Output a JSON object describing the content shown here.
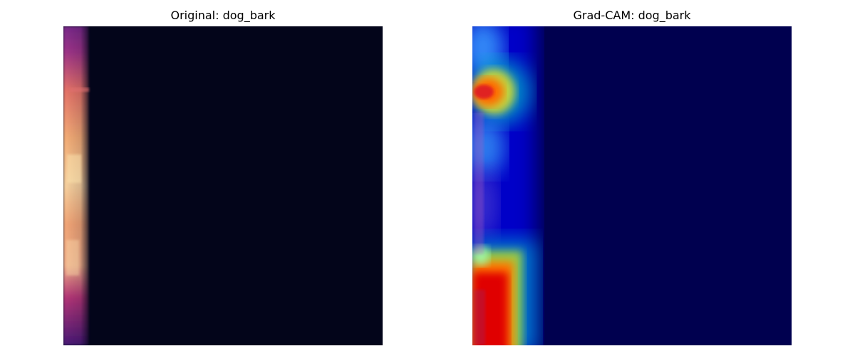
{
  "panels": [
    {
      "title": "Original: dog_bark"
    },
    {
      "title": "Grad-CAM: dog_bark"
    }
  ],
  "colors": {
    "spectrogram_background": "#03051a",
    "gradcam_background": "#00004f",
    "spectrogram_hot": "#fcfdbf",
    "spectrogram_mid": "#b73779",
    "gradcam_hot": "#ff0000",
    "gradcam_warm": "#ffff00",
    "gradcam_cool": "#00bfff"
  }
}
